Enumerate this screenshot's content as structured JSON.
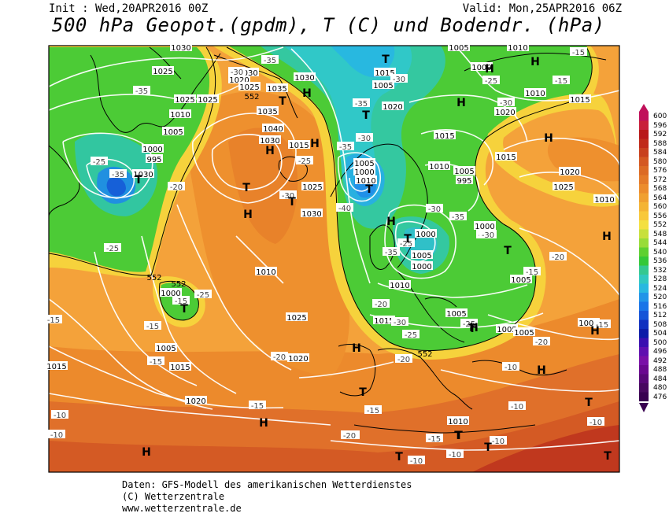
{
  "header": {
    "init": "Init : Wed,20APR2016 00Z",
    "valid": "Valid: Mon,25APR2016 06Z",
    "title": "500 hPa Geopot.(gpdm), T (C) und Bodendr. (hPa)"
  },
  "footer": {
    "line1": "Daten: GFS-Modell des amerikanischen Wetterdienstes",
    "line2": "(C) Wetterzentrale",
    "line3": "www.wetterzentrale.de"
  },
  "scale": {
    "values": [
      "600",
      "596",
      "592",
      "588",
      "584",
      "580",
      "576",
      "572",
      "568",
      "564",
      "560",
      "556",
      "552",
      "548",
      "544",
      "540",
      "536",
      "532",
      "528",
      "524",
      "520",
      "516",
      "512",
      "508",
      "504",
      "500",
      "496",
      "492",
      "488",
      "484",
      "480",
      "476"
    ],
    "colors": [
      "#c0105a",
      "#c8203a",
      "#b81818",
      "#c02a1a",
      "#c8401e",
      "#d45822",
      "#dc6a24",
      "#e47a28",
      "#ec8c2c",
      "#f0a030",
      "#f4b434",
      "#f8c83a",
      "#f4e040",
      "#c8e03c",
      "#98dc38",
      "#5ed030",
      "#34c838",
      "#34c890",
      "#30c8c0",
      "#28b8e0",
      "#2094e8",
      "#1874e8",
      "#1454d8",
      "#1030c0",
      "#0c1ca8",
      "#3a10b0",
      "#6010b0",
      "#7a10a8",
      "#6a0890",
      "#580878",
      "#480860",
      "#380050"
    ]
  },
  "labels": {
    "pressure": [
      "1030",
      "1025",
      "1020",
      "1025",
      "1025",
      "1035",
      "1030",
      "1035",
      "1040",
      "1030",
      "1015",
      "1010",
      "1005",
      "1000",
      "995",
      "1030",
      "1025",
      "1030",
      "1010",
      "1005",
      "1000",
      "1010",
      "1005",
      "1015",
      "1020",
      "1015",
      "1010",
      "1005",
      "995",
      "1000",
      "1005",
      "1000",
      "1010",
      "1015",
      "1005",
      "1000",
      "1005",
      "1005",
      "1020",
      "1025",
      "1015",
      "1020",
      "1010",
      "1020",
      "1025",
      "1005",
      "1010",
      "1015",
      "1020",
      "1005",
      "1005",
      "1015",
      "1000",
      "1005",
      "1000",
      "1010",
      "1015",
      "1010",
      "1025",
      "1030"
    ],
    "temperature": [
      "-35",
      "-30",
      "-35",
      "-25",
      "-30",
      "-35",
      "-30",
      "-25",
      "-35",
      "-30",
      "-20",
      "-35",
      "-25",
      "-40",
      "-30",
      "-25",
      "-30",
      "-20",
      "-25",
      "-35",
      "-35",
      "-30",
      "-25",
      "-20",
      "-20",
      "-20",
      "-15",
      "-15",
      "-15",
      "-15",
      "-10",
      "-10",
      "-10",
      "-10",
      "-10",
      "-10",
      "-15",
      "-10",
      "-10",
      "-10",
      "-10",
      "-15",
      "-15",
      "-10",
      "-15",
      "-20",
      "-15",
      "-25",
      "-30",
      "-25",
      "-15",
      "-20",
      "-15"
    ],
    "geopotential": [
      "552",
      "552",
      "552",
      "552"
    ],
    "pressure_centers": [
      "H",
      "H",
      "H",
      "H",
      "H",
      "H",
      "H",
      "H",
      "H",
      "H",
      "H",
      "H",
      "H",
      "H",
      "H",
      "H",
      "T",
      "T",
      "T",
      "T",
      "T",
      "T",
      "T",
      "T",
      "T",
      "T",
      "T",
      "T",
      "T",
      "T",
      "T",
      "T",
      "T",
      "T"
    ]
  }
}
